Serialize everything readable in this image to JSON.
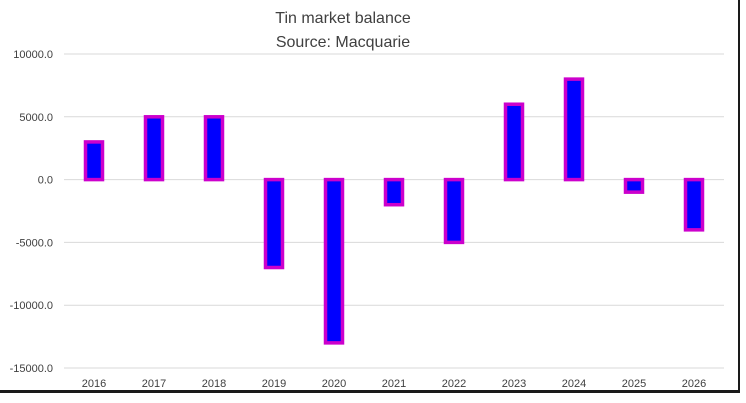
{
  "chart_data": {
    "type": "bar",
    "title": "Tin market balance",
    "subtitle": "Source: Macquarie",
    "categories": [
      "2016",
      "2017",
      "2018",
      "2019",
      "2020",
      "2021",
      "2022",
      "2023",
      "2024",
      "2025",
      "2026"
    ],
    "values": [
      3000,
      5000,
      5000,
      -7000,
      -13000,
      -2000,
      -5000,
      6000,
      8000,
      -1000,
      -4000
    ],
    "ylim": [
      -15000,
      10000
    ],
    "yticks": [
      10000,
      5000,
      0,
      -5000,
      -10000,
      -15000
    ],
    "ytick_labels": [
      "10000.0",
      "5000.0",
      "0.0",
      "-5000.0",
      "-10000.0",
      "-15000.0"
    ],
    "grid": true,
    "xlabel": "",
    "ylabel": "",
    "colors": {
      "bar_fill": "#0000ff",
      "bar_border": "#cc00cc",
      "grid": "#d9d9d9"
    }
  }
}
